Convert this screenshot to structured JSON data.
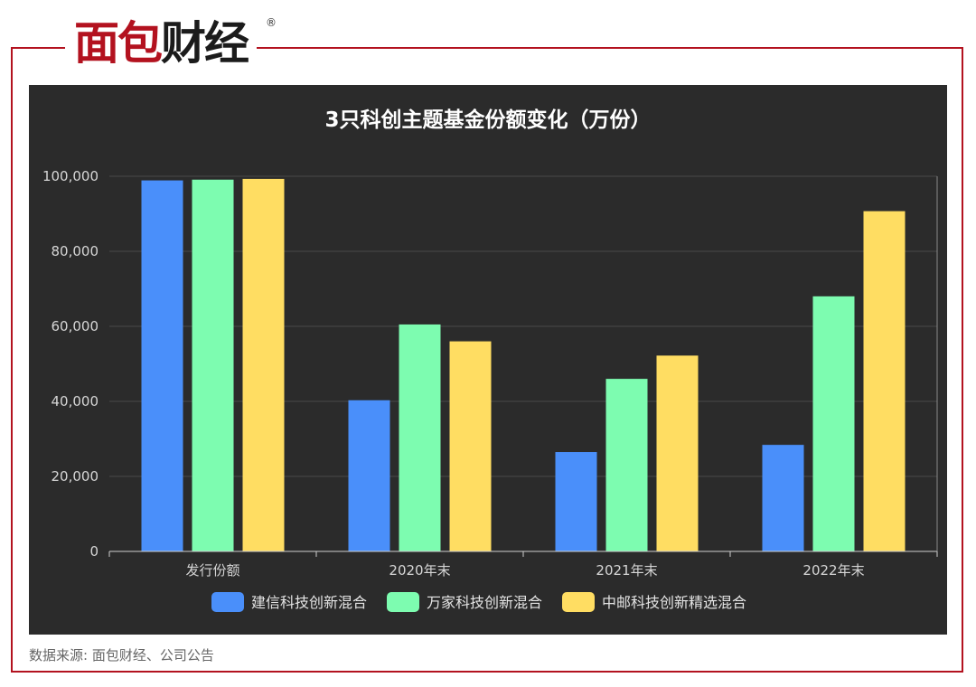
{
  "logo": {
    "red_part": "面包",
    "dark_part": "财经",
    "reg_mark": "®"
  },
  "source_note": "数据来源: 面包财经、公司公告",
  "colors": {
    "brand_red": "#b3121f",
    "panel_bg": "#2b2b2b"
  },
  "chart_data": {
    "type": "bar",
    "title": "3只科创主题基金份额变化（万份）",
    "categories": [
      "发行份额",
      "2020年末",
      "2021年末",
      "2022年末"
    ],
    "series": [
      {
        "name": "建信科技创新混合",
        "color": "#4a8ffa",
        "values": [
          98900,
          40300,
          26500,
          28400
        ]
      },
      {
        "name": "万家科技创新混合",
        "color": "#7dfcb0",
        "values": [
          99100,
          60500,
          46000,
          68000
        ]
      },
      {
        "name": "中邮科技创新精选混合",
        "color": "#ffdd62",
        "values": [
          99300,
          56000,
          52200,
          90700
        ]
      }
    ],
    "ylim": [
      0,
      100000
    ],
    "yticks": [
      "0",
      "20,000",
      "40,000",
      "60,000",
      "80,000",
      "100,000"
    ],
    "ytick_values": [
      0,
      20000,
      40000,
      60000,
      80000,
      100000
    ],
    "grid": true,
    "legend_position": "bottom",
    "xlabel": "",
    "ylabel": ""
  }
}
